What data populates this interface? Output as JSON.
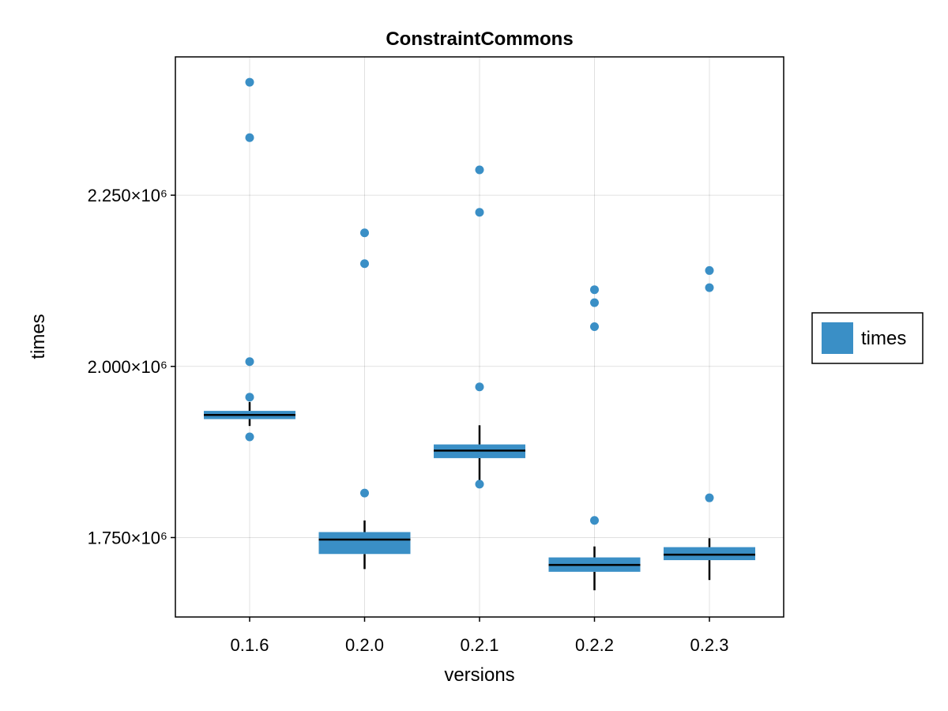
{
  "chart_data": {
    "type": "box",
    "title": "ConstraintCommons",
    "xlabel": "versions",
    "ylabel": "times",
    "categories": [
      "0.1.6",
      "0.2.0",
      "0.2.1",
      "0.2.2",
      "0.2.3"
    ],
    "ylim": [
      1634000,
      2452000
    ],
    "yticks": [
      1750000,
      2000000,
      2250000
    ],
    "ytick_labels": [
      "1.750×10⁶",
      "2.000×10⁶",
      "2.250×10⁶"
    ],
    "grid": true,
    "legend": {
      "position": "right",
      "entries": [
        "times"
      ]
    },
    "series": [
      {
        "name": "times",
        "color": "#3a8fc6",
        "boxes": [
          {
            "whisker_low": 1913000,
            "q1": 1923000,
            "median": 1929000,
            "q3": 1935000,
            "whisker_high": 1948000,
            "outliers": [
              2415000,
              2334000,
              2007000,
              1955000,
              1897000
            ]
          },
          {
            "whisker_low": 1704000,
            "q1": 1726000,
            "median": 1747000,
            "q3": 1758000,
            "whisker_high": 1775000,
            "outliers": [
              2195000,
              2150000,
              1815000
            ]
          },
          {
            "whisker_low": 1833000,
            "q1": 1866000,
            "median": 1877000,
            "q3": 1886000,
            "whisker_high": 1914000,
            "outliers": [
              2287000,
              2225000,
              1970000,
              1828000
            ]
          },
          {
            "whisker_low": 1673000,
            "q1": 1700000,
            "median": 1710000,
            "q3": 1721000,
            "whisker_high": 1737000,
            "outliers": [
              2112000,
              2093000,
              2058000,
              1775000
            ]
          },
          {
            "whisker_low": 1688000,
            "q1": 1717000,
            "median": 1725000,
            "q3": 1736000,
            "whisker_high": 1749000,
            "outliers": [
              2140000,
              2115000,
              1808000
            ]
          }
        ]
      }
    ]
  }
}
